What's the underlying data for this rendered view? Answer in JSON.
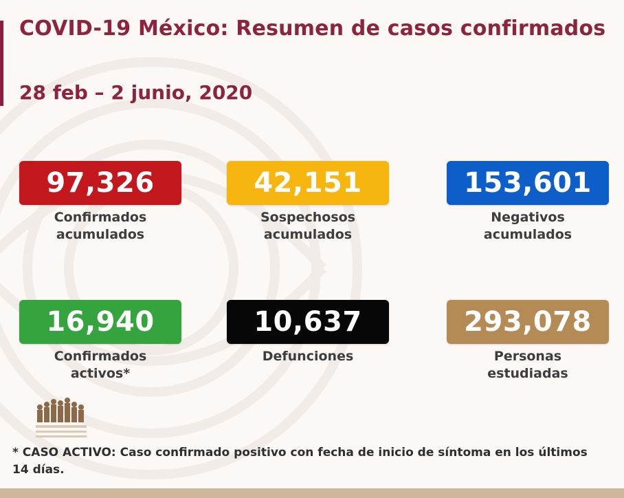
{
  "title": "COVID-19 México: Resumen de casos confirmados",
  "date_range": "28 feb – 2 junio, 2020",
  "stats": [
    {
      "value": "97,326",
      "label": "Confirmados\nacumulados",
      "color": "#c1171d"
    },
    {
      "value": "42,151",
      "label": "Sospechosos\nacumulados",
      "color": "#f6b60f"
    },
    {
      "value": "153,601",
      "label": "Negativos\nacumulados",
      "color": "#0d5ec9"
    },
    {
      "value": "16,940",
      "label": "Confirmados\nactivos*",
      "color": "#35a43f"
    },
    {
      "value": "10,637",
      "label": "Defunciones",
      "color": "#070707"
    },
    {
      "value": "293,078",
      "label": "Personas\nestudiadas",
      "color": "#b48a55"
    }
  ],
  "footnote": "* CASO ACTIVO: Caso confirmado positivo con fecha de inicio de síntoma en los últimos 14 días.",
  "colors": {
    "accent": "#8c2440",
    "bottom_bar": "#cdb89a"
  }
}
